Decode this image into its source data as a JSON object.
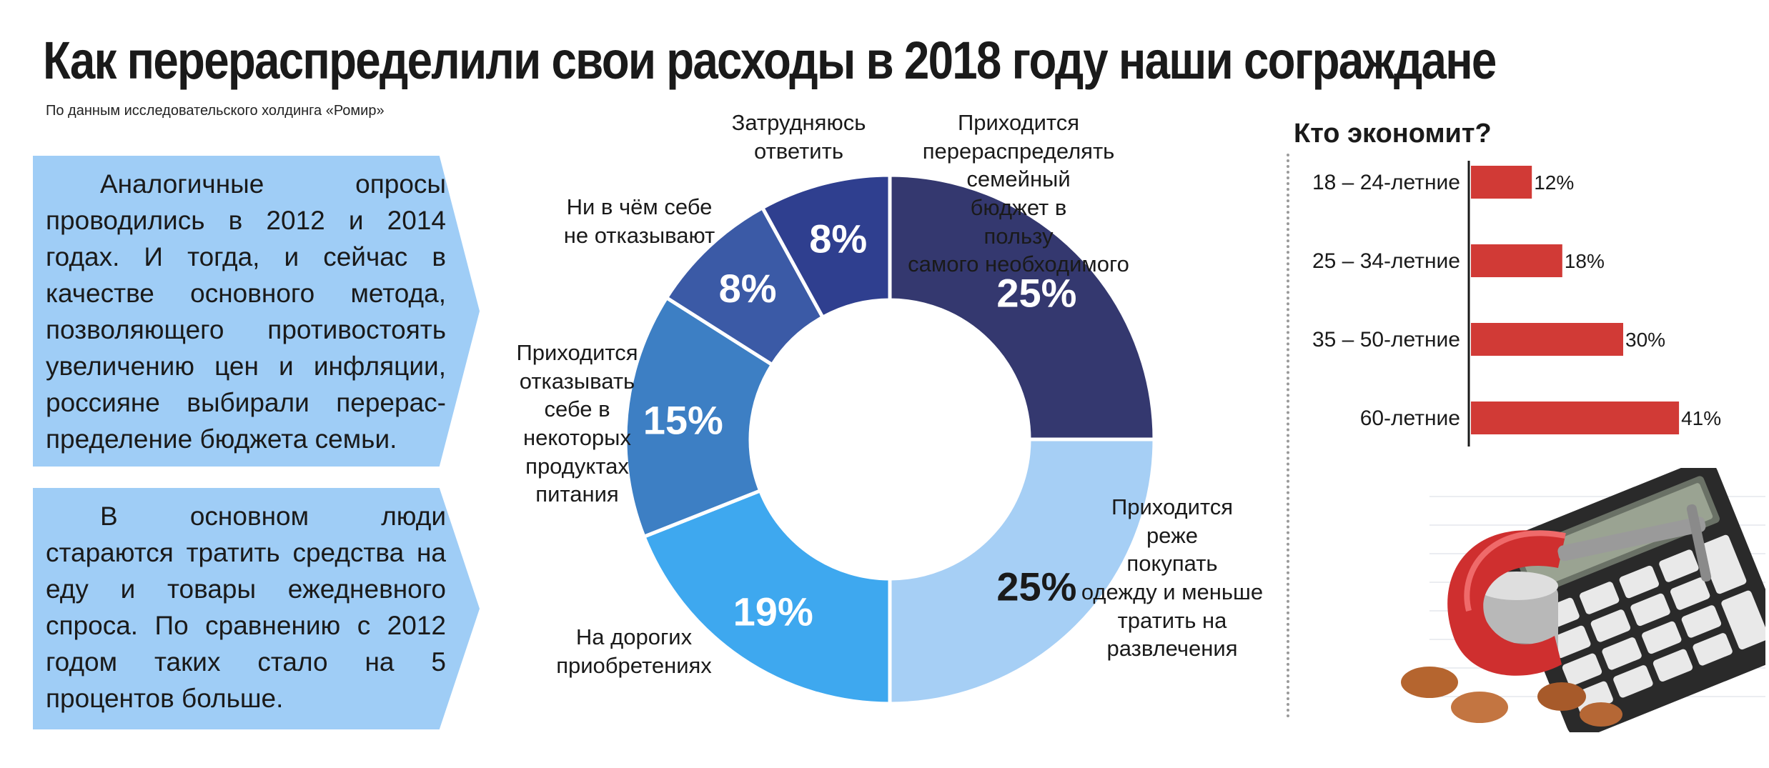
{
  "title": "Как перераспределили свои расходы в 2018 году наши сограждане",
  "source": "По данным исследовательского холдинга «Ромир»",
  "callouts": [
    {
      "text": "Аналогичные опросы проводились в 2012 и 2014 годах. И тогда, и сейчас в качестве основного метода, позволяющего противостоять увеличению цен и инфляции, россияне выбирали перерас­пределение бюджета семьи."
    },
    {
      "text": "В основном люди стараются тратить средства на еду и товары ежедневного спроса. По сравнению с 2012 годом таких стало на 5 процентов больше."
    }
  ],
  "chart_data": [
    {
      "type": "pie",
      "donut": true,
      "slices": [
        {
          "label": "Приходится перераспределять семейный бюджет в пользу самого необходимого",
          "value": 25,
          "value_label": "25%",
          "color": "#34386f",
          "text_color": "#ffffff"
        },
        {
          "label": "Приходится реже покупать одежду и меньше тратить на развлечения",
          "value": 25,
          "value_label": "25%",
          "color": "#a6cff5",
          "text_color": "#1a1a1a"
        },
        {
          "label": "На дорогих приобретениях",
          "value": 19,
          "value_label": "19%",
          "color": "#3ea8ef",
          "text_color": "#ffffff"
        },
        {
          "label": "Приходится отказывать себе в некоторых продуктах питания",
          "value": 15,
          "value_label": "15%",
          "color": "#3d7fc4",
          "text_color": "#ffffff"
        },
        {
          "label": "Ни в чём себе не отказывают",
          "value": 8,
          "value_label": "8%",
          "color": "#3b5aa6",
          "text_color": "#ffffff"
        },
        {
          "label": "Затрудняюсь ответить",
          "value": 8,
          "value_label": "8%",
          "color": "#2f3f8f",
          "text_color": "#ffffff"
        }
      ]
    },
    {
      "type": "bar",
      "orientation": "horizontal",
      "title": "Кто экономит?",
      "categories": [
        "18 – 24-летние",
        "25 – 34-летние",
        "35 – 50-летние",
        "60-летние"
      ],
      "values": [
        12,
        18,
        30,
        41
      ],
      "value_labels": [
        "12%",
        "18%",
        "30%",
        "41%"
      ],
      "color": "#d13a36"
    }
  ],
  "illustration": {
    "icon": "calculator-clamp-coins-icon"
  }
}
